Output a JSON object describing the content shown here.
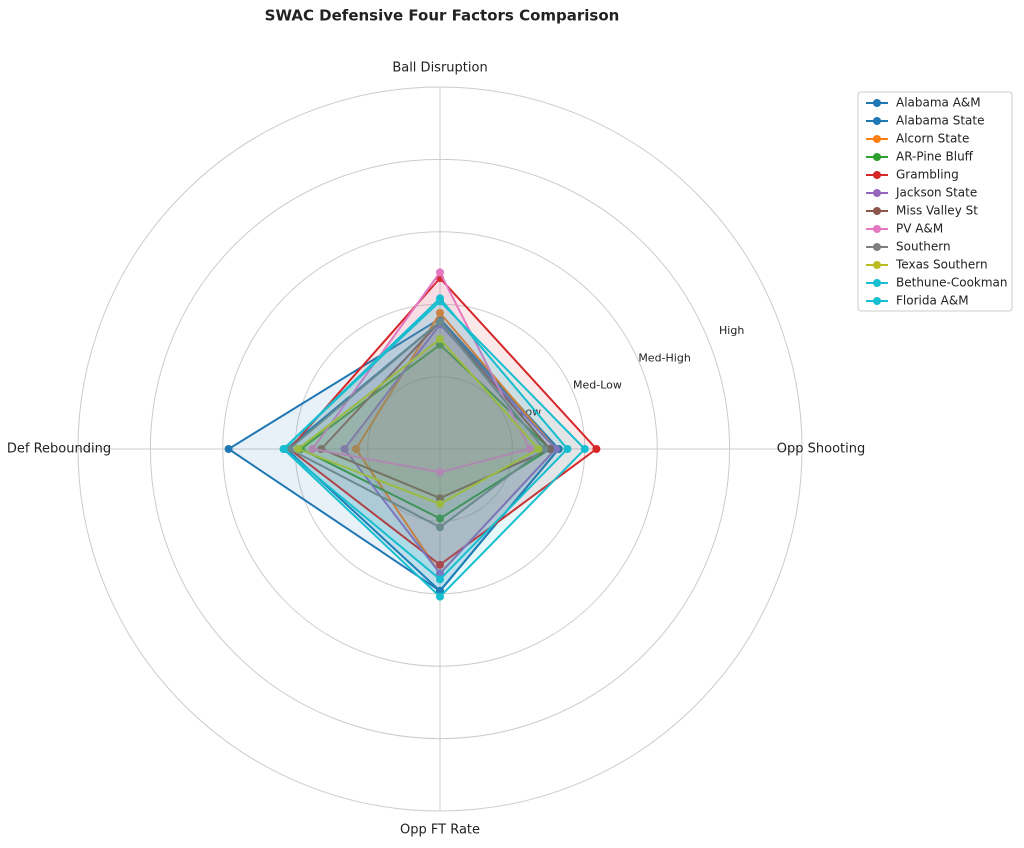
{
  "chart_data": {
    "type": "radar",
    "title": "SWAC Defensive Four Factors Comparison",
    "categories": [
      "Ball Disruption",
      "Def Rebounding",
      "Opp FT Rate",
      "Opp Shooting"
    ],
    "ylim": [
      0,
      1.25
    ],
    "yticks": [
      {
        "value": 0.25,
        "label": "Low"
      },
      {
        "value": 0.5,
        "label": "Med-Low"
      },
      {
        "value": 0.75,
        "label": "Med-High"
      },
      {
        "value": 1.0,
        "label": "High"
      }
    ],
    "grid": true,
    "legend": "upper right",
    "series": [
      {
        "name": "Alabama A&M",
        "color": "#1f77b4",
        "values": [
          0.45,
          0.73,
          0.49,
          0.41
        ]
      },
      {
        "name": "Alabama State",
        "color": "#1f77b4",
        "values": [
          0.44,
          0.53,
          0.49,
          0.41
        ]
      },
      {
        "name": "Alcorn State",
        "color": "#ff7f0e",
        "values": [
          0.47,
          0.29,
          0.43,
          0.4
        ]
      },
      {
        "name": "AR-Pine Bluff",
        "color": "#2ca02c",
        "values": [
          0.36,
          0.48,
          0.24,
          0.38
        ]
      },
      {
        "name": "Grambling",
        "color": "#d62728",
        "values": [
          0.59,
          0.52,
          0.4,
          0.54
        ]
      },
      {
        "name": "Jackson State",
        "color": "#9467bd",
        "values": [
          0.43,
          0.33,
          0.43,
          0.4
        ]
      },
      {
        "name": "Miss Valley St",
        "color": "#8c564b",
        "values": [
          0.44,
          0.41,
          0.17,
          0.38
        ]
      },
      {
        "name": "PV A&M",
        "color": "#e377c2",
        "values": [
          0.61,
          0.44,
          0.08,
          0.31
        ]
      },
      {
        "name": "Southern",
        "color": "#7f7f7f",
        "values": [
          0.44,
          0.52,
          0.27,
          0.36
        ]
      },
      {
        "name": "Texas Southern",
        "color": "#bcbd22",
        "values": [
          0.38,
          0.49,
          0.19,
          0.34
        ]
      },
      {
        "name": "Bethune-Cookman",
        "color": "#17becf",
        "values": [
          0.52,
          0.54,
          0.45,
          0.44
        ]
      },
      {
        "name": "Florida A&M",
        "color": "#17becf",
        "values": [
          0.51,
          0.54,
          0.51,
          0.5
        ]
      }
    ]
  }
}
